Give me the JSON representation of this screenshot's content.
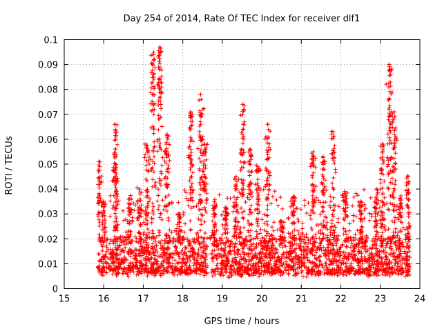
{
  "chart_data": {
    "type": "scatter",
    "title": "Day 254 of 2014, Rate Of TEC Index for receiver dlf1",
    "xlabel": "GPS time / hours",
    "ylabel": "ROTI / TECUs",
    "xlim": [
      15,
      24
    ],
    "ylim": [
      0,
      0.1
    ],
    "xticks": [
      "15",
      "16",
      "17",
      "18",
      "19",
      "20",
      "21",
      "22",
      "23",
      "24"
    ],
    "yticks": [
      "0",
      "0.01",
      "0.02",
      "0.03",
      "0.04",
      "0.05",
      "0.06",
      "0.07",
      "0.08",
      "0.09",
      "0.1"
    ],
    "grid": true,
    "marker": "+",
    "color": "#ff0000",
    "data_range_hours": [
      15.85,
      23.75
    ],
    "baseline": {
      "low": 0.006,
      "high": 0.02
    },
    "peaks": [
      {
        "x": 15.88,
        "y": 0.051
      },
      {
        "x": 16.0,
        "y": 0.035
      },
      {
        "x": 16.28,
        "y": 0.066
      },
      {
        "x": 16.3,
        "y": 0.048
      },
      {
        "x": 16.65,
        "y": 0.036
      },
      {
        "x": 16.9,
        "y": 0.04
      },
      {
        "x": 17.1,
        "y": 0.0575
      },
      {
        "x": 17.25,
        "y": 0.094
      },
      {
        "x": 17.42,
        "y": 0.097
      },
      {
        "x": 17.6,
        "y": 0.062
      },
      {
        "x": 17.9,
        "y": 0.03
      },
      {
        "x": 18.2,
        "y": 0.071
      },
      {
        "x": 18.45,
        "y": 0.078
      },
      {
        "x": 18.55,
        "y": 0.058
      },
      {
        "x": 18.8,
        "y": 0.035
      },
      {
        "x": 19.1,
        "y": 0.032
      },
      {
        "x": 19.35,
        "y": 0.045
      },
      {
        "x": 19.52,
        "y": 0.074
      },
      {
        "x": 19.7,
        "y": 0.056
      },
      {
        "x": 19.9,
        "y": 0.049
      },
      {
        "x": 20.15,
        "y": 0.066
      },
      {
        "x": 20.5,
        "y": 0.027
      },
      {
        "x": 20.8,
        "y": 0.037
      },
      {
        "x": 21.3,
        "y": 0.055
      },
      {
        "x": 21.55,
        "y": 0.053
      },
      {
        "x": 21.8,
        "y": 0.063
      },
      {
        "x": 22.1,
        "y": 0.039
      },
      {
        "x": 22.5,
        "y": 0.035
      },
      {
        "x": 22.9,
        "y": 0.04
      },
      {
        "x": 23.05,
        "y": 0.058
      },
      {
        "x": 23.22,
        "y": 0.09
      },
      {
        "x": 23.35,
        "y": 0.071
      },
      {
        "x": 23.5,
        "y": 0.036
      },
      {
        "x": 23.7,
        "y": 0.045
      }
    ]
  }
}
